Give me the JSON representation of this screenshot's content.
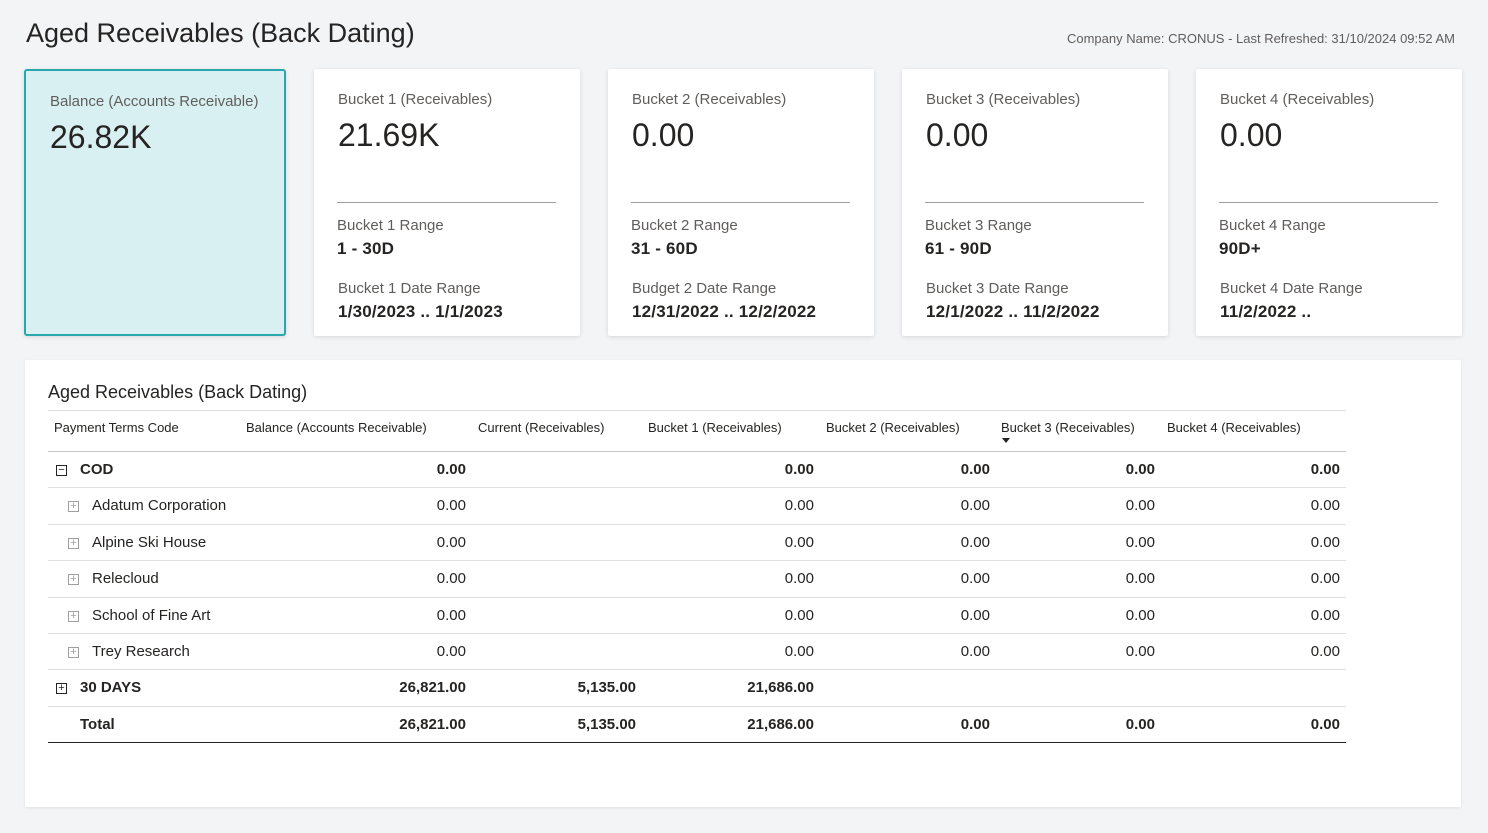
{
  "header": {
    "title": "Aged Receivables (Back Dating)",
    "meta": "Company Name: CRONUS - Last Refreshed: 31/10/2024 09:52 AM"
  },
  "kpi": {
    "balance": {
      "label": "Balance (Accounts Receivable)",
      "value": "26.82K"
    },
    "buckets": [
      {
        "label": "Bucket 1 (Receivables)",
        "value": "21.69K",
        "range_label": "Bucket 1 Range",
        "range": "1 - 30D",
        "date_label": "Bucket 1 Date Range",
        "date_range": "1/30/2023 .. 1/1/2023"
      },
      {
        "label": "Bucket 2 (Receivables)",
        "value": "0.00",
        "range_label": "Bucket 2 Range",
        "range": "31 - 60D",
        "date_label": "Budget 2 Date Range",
        "date_range": "12/31/2022 .. 12/2/2022"
      },
      {
        "label": "Bucket 3 (Receivables)",
        "value": "0.00",
        "range_label": "Bucket 3 Range",
        "range": "61 - 90D",
        "date_label": "Bucket 3 Date Range",
        "date_range": "12/1/2022 .. 11/2/2022"
      },
      {
        "label": "Bucket 4 (Receivables)",
        "value": "0.00",
        "range_label": "Bucket 4 Range",
        "range": "90D+",
        "date_label": "Bucket 4 Date Range",
        "date_range": "11/2/2022 .."
      }
    ]
  },
  "table": {
    "title": "Aged Receivables (Back Dating)",
    "columns": [
      "Payment Terms Code",
      "Balance (Accounts Receivable)",
      "Current (Receivables)",
      "Bucket 1 (Receivables)",
      "Bucket 2 (Receivables)",
      "Bucket 3 (Receivables)",
      "Bucket 4 (Receivables)"
    ],
    "expand_symbol": "⊟",
    "collapse_symbol": "⊞",
    "rows": [
      {
        "label": "COD",
        "expanded": "−",
        "values": [
          "0.00",
          "",
          "0.00",
          "0.00",
          "0.00",
          "0.00"
        ]
      },
      {
        "label": "Adatum Corporation",
        "expanded": "+",
        "values": [
          "0.00",
          "",
          "0.00",
          "0.00",
          "0.00",
          "0.00"
        ]
      },
      {
        "label": "Alpine Ski House",
        "expanded": "+",
        "values": [
          "0.00",
          "",
          "0.00",
          "0.00",
          "0.00",
          "0.00"
        ]
      },
      {
        "label": "Relecloud",
        "expanded": "+",
        "values": [
          "0.00",
          "",
          "0.00",
          "0.00",
          "0.00",
          "0.00"
        ]
      },
      {
        "label": "School of Fine Art",
        "expanded": "+",
        "values": [
          "0.00",
          "",
          "0.00",
          "0.00",
          "0.00",
          "0.00"
        ]
      },
      {
        "label": "Trey Research",
        "expanded": "+",
        "values": [
          "0.00",
          "",
          "0.00",
          "0.00",
          "0.00",
          "0.00"
        ]
      },
      {
        "label": "30 DAYS",
        "expanded": "+",
        "values": [
          "26,821.00",
          "5,135.00",
          "21,686.00",
          "",
          "",
          ""
        ]
      },
      {
        "label": "Total",
        "values": [
          "26,821.00",
          "5,135.00",
          "21,686.00",
          "0.00",
          "0.00",
          "0.00"
        ]
      }
    ]
  }
}
